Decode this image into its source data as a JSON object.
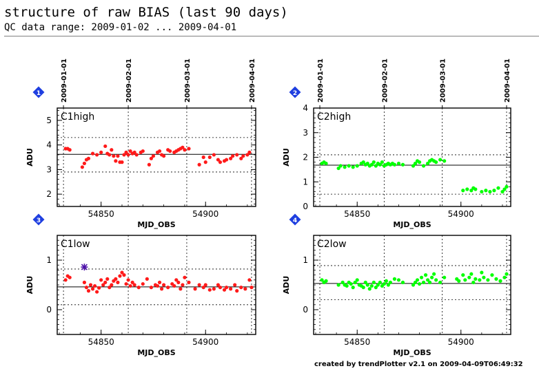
{
  "title": "structure of raw BIAS (last 90 days)",
  "subtitle": "QC data range: 2009-01-02 ... 2009-04-01",
  "footer": "created by trendPlotter v2.1 on 2009-04-09T06:49:32",
  "colors": {
    "red_series": "#ff1a1a",
    "green_series": "#00ff00",
    "badge": "#1f3fe0",
    "outlier": "#4b0fa8"
  },
  "chart_data": [
    {
      "type": "scatter",
      "badge": "1",
      "label": "C1high",
      "xlabel": "MJD_OBS",
      "ylabel": "ADU",
      "xlim": [
        54829,
        54924
      ],
      "ylim": [
        1.5,
        5.5
      ],
      "yticks": [
        2,
        3,
        4,
        5
      ],
      "xticks": [
        54850,
        54900
      ],
      "date_ticks": [
        {
          "mjd": 54832,
          "label": "2009-01-01"
        },
        {
          "mjd": 54863,
          "label": "2009-02-01"
        },
        {
          "mjd": 54891,
          "label": "2009-03-01"
        },
        {
          "mjd": 54922,
          "label": "2009-04-01"
        }
      ],
      "mean": 3.62,
      "limits": [
        2.9,
        4.3
      ],
      "color": "#ff1a1a",
      "x": [
        54833,
        54834,
        54835,
        54841,
        54842,
        54843,
        54844,
        54846,
        54848,
        54850,
        54852,
        54853,
        54854,
        54855,
        54856,
        54857,
        54858,
        54859,
        54860,
        54861,
        54862,
        54863,
        54864,
        54865,
        54866,
        54867,
        54869,
        54870,
        54873,
        54874,
        54875,
        54877,
        54878,
        54879,
        54880,
        54882,
        54883,
        54885,
        54886,
        54887,
        54888,
        54889,
        54890,
        54892,
        54897,
        54899,
        54900,
        54902,
        54904,
        54906,
        54907,
        54909,
        54910,
        54912,
        54913,
        54915,
        54917,
        54918,
        54920,
        54921
      ],
      "y": [
        3.85,
        3.85,
        3.8,
        3.1,
        3.25,
        3.4,
        3.45,
        3.65,
        3.6,
        3.7,
        3.95,
        3.65,
        3.6,
        3.8,
        3.55,
        3.35,
        3.55,
        3.3,
        3.3,
        3.6,
        3.7,
        3.6,
        3.75,
        3.65,
        3.7,
        3.6,
        3.7,
        3.75,
        3.2,
        3.45,
        3.55,
        3.7,
        3.75,
        3.6,
        3.55,
        3.8,
        3.75,
        3.7,
        3.75,
        3.8,
        3.85,
        3.9,
        3.8,
        3.85,
        3.2,
        3.5,
        3.3,
        3.5,
        3.6,
        3.4,
        3.3,
        3.35,
        3.4,
        3.45,
        3.55,
        3.6,
        3.45,
        3.55,
        3.6,
        3.7
      ]
    },
    {
      "type": "scatter",
      "badge": "2",
      "label": "C2high",
      "xlabel": "MJD_OBS",
      "ylabel": "ADU",
      "xlim": [
        54829,
        54924
      ],
      "ylim": [
        0,
        4
      ],
      "yticks": [
        0,
        1,
        2,
        3,
        4
      ],
      "xticks": [
        54850,
        54900
      ],
      "date_ticks": [
        {
          "mjd": 54832,
          "label": "2009-01-01"
        },
        {
          "mjd": 54863,
          "label": "2009-02-01"
        },
        {
          "mjd": 54891,
          "label": "2009-03-01"
        },
        {
          "mjd": 54922,
          "label": "2009-04-01"
        }
      ],
      "mean": 1.68,
      "limits": [
        0.5,
        2.1
      ],
      "color": "#00ff00",
      "x": [
        54833,
        54834,
        54835,
        54841,
        54842,
        54844,
        54846,
        54848,
        54850,
        54852,
        54853,
        54854,
        54855,
        54856,
        54857,
        54858,
        54859,
        54860,
        54861,
        54862,
        54863,
        54864,
        54865,
        54866,
        54867,
        54868,
        54870,
        54872,
        54877,
        54878,
        54879,
        54880,
        54882,
        54884,
        54885,
        54886,
        54887,
        54888,
        54890,
        54892,
        54901,
        54903,
        54905,
        54906,
        54907,
        54910,
        54912,
        54914,
        54916,
        54918,
        54920,
        54921,
        54922
      ],
      "y": [
        1.75,
        1.8,
        1.75,
        1.55,
        1.65,
        1.6,
        1.65,
        1.6,
        1.65,
        1.75,
        1.8,
        1.7,
        1.75,
        1.65,
        1.7,
        1.8,
        1.65,
        1.75,
        1.7,
        1.8,
        1.65,
        1.7,
        1.75,
        1.7,
        1.75,
        1.7,
        1.75,
        1.7,
        1.65,
        1.75,
        1.85,
        1.8,
        1.65,
        1.75,
        1.85,
        1.9,
        1.85,
        1.8,
        1.9,
        1.85,
        0.65,
        0.7,
        0.65,
        0.75,
        0.7,
        0.6,
        0.65,
        0.6,
        0.65,
        0.75,
        0.6,
        0.7,
        0.8
      ]
    },
    {
      "type": "scatter",
      "badge": "3",
      "label": "C1low",
      "xlabel": "MJD_OBS",
      "ylabel": "ADU",
      "xlim": [
        54829,
        54924
      ],
      "ylim": [
        -0.5,
        1.5
      ],
      "yticks": [
        0,
        1
      ],
      "xticks": [
        54850,
        54900
      ],
      "date_ticks": [
        {
          "mjd": 54832,
          "label": ""
        },
        {
          "mjd": 54863,
          "label": ""
        },
        {
          "mjd": 54891,
          "label": ""
        },
        {
          "mjd": 54922,
          "label": ""
        }
      ],
      "mean": 0.46,
      "limits": [
        0.1,
        0.82
      ],
      "color": "#ff1a1a",
      "outlier": {
        "x": 54842,
        "y": 0.86
      },
      "x": [
        54833,
        54834,
        54835,
        54842,
        54843,
        54844,
        54845,
        54846,
        54847,
        54848,
        54849,
        54850,
        54851,
        54852,
        54853,
        54854,
        54855,
        54856,
        54857,
        54858,
        54859,
        54860,
        54861,
        54862,
        54863,
        54864,
        54865,
        54866,
        54868,
        54870,
        54872,
        54874,
        54876,
        54877,
        54878,
        54879,
        54880,
        54882,
        54884,
        54885,
        54886,
        54887,
        54888,
        54889,
        54890,
        54892,
        54895,
        54897,
        54899,
        54900,
        54902,
        54904,
        54906,
        54907,
        54909,
        54910,
        54912,
        54914,
        54915,
        54917,
        54919,
        54921,
        54922
      ],
      "y": [
        0.6,
        0.68,
        0.65,
        0.55,
        0.45,
        0.38,
        0.5,
        0.42,
        0.48,
        0.36,
        0.44,
        0.6,
        0.5,
        0.55,
        0.62,
        0.45,
        0.5,
        0.58,
        0.62,
        0.55,
        0.68,
        0.75,
        0.7,
        0.52,
        0.6,
        0.48,
        0.55,
        0.5,
        0.45,
        0.52,
        0.62,
        0.45,
        0.5,
        0.48,
        0.55,
        0.42,
        0.5,
        0.45,
        0.52,
        0.48,
        0.6,
        0.55,
        0.42,
        0.5,
        0.65,
        0.55,
        0.42,
        0.5,
        0.45,
        0.5,
        0.4,
        0.42,
        0.5,
        0.45,
        0.4,
        0.45,
        0.42,
        0.5,
        0.38,
        0.45,
        0.42,
        0.6,
        0.45
      ]
    },
    {
      "type": "scatter",
      "badge": "4",
      "label": "C2low",
      "xlabel": "MJD_OBS",
      "ylabel": "ADU",
      "xlim": [
        54829,
        54924
      ],
      "ylim": [
        -0.5,
        1.5
      ],
      "yticks": [
        0,
        1
      ],
      "xticks": [
        54850,
        54900
      ],
      "date_ticks": [
        {
          "mjd": 54832,
          "label": ""
        },
        {
          "mjd": 54863,
          "label": ""
        },
        {
          "mjd": 54891,
          "label": ""
        },
        {
          "mjd": 54922,
          "label": ""
        }
      ],
      "mean": 0.53,
      "limits": [
        0.2,
        0.89
      ],
      "color": "#00ff00",
      "x": [
        54833,
        54834,
        54835,
        54841,
        54843,
        54844,
        54845,
        54846,
        54847,
        54848,
        54849,
        54850,
        54851,
        54852,
        54853,
        54854,
        54855,
        54856,
        54857,
        54858,
        54859,
        54860,
        54861,
        54862,
        54863,
        54864,
        54865,
        54866,
        54868,
        54870,
        54872,
        54877,
        54878,
        54879,
        54880,
        54881,
        54882,
        54883,
        54884,
        54885,
        54886,
        54887,
        54888,
        54890,
        54892,
        54898,
        54899,
        54901,
        54902,
        54904,
        54905,
        54906,
        54907,
        54909,
        54910,
        54911,
        54913,
        54915,
        54917,
        54919,
        54921,
        54922
      ],
      "y": [
        0.6,
        0.55,
        0.58,
        0.5,
        0.55,
        0.5,
        0.48,
        0.55,
        0.52,
        0.45,
        0.55,
        0.6,
        0.5,
        0.48,
        0.45,
        0.55,
        0.5,
        0.42,
        0.48,
        0.55,
        0.45,
        0.5,
        0.55,
        0.48,
        0.52,
        0.58,
        0.5,
        0.55,
        0.62,
        0.6,
        0.55,
        0.5,
        0.55,
        0.6,
        0.52,
        0.65,
        0.55,
        0.7,
        0.6,
        0.55,
        0.65,
        0.72,
        0.6,
        0.55,
        0.65,
        0.62,
        0.58,
        0.7,
        0.6,
        0.65,
        0.72,
        0.55,
        0.62,
        0.6,
        0.75,
        0.65,
        0.6,
        0.7,
        0.62,
        0.58,
        0.65,
        0.72
      ]
    }
  ]
}
